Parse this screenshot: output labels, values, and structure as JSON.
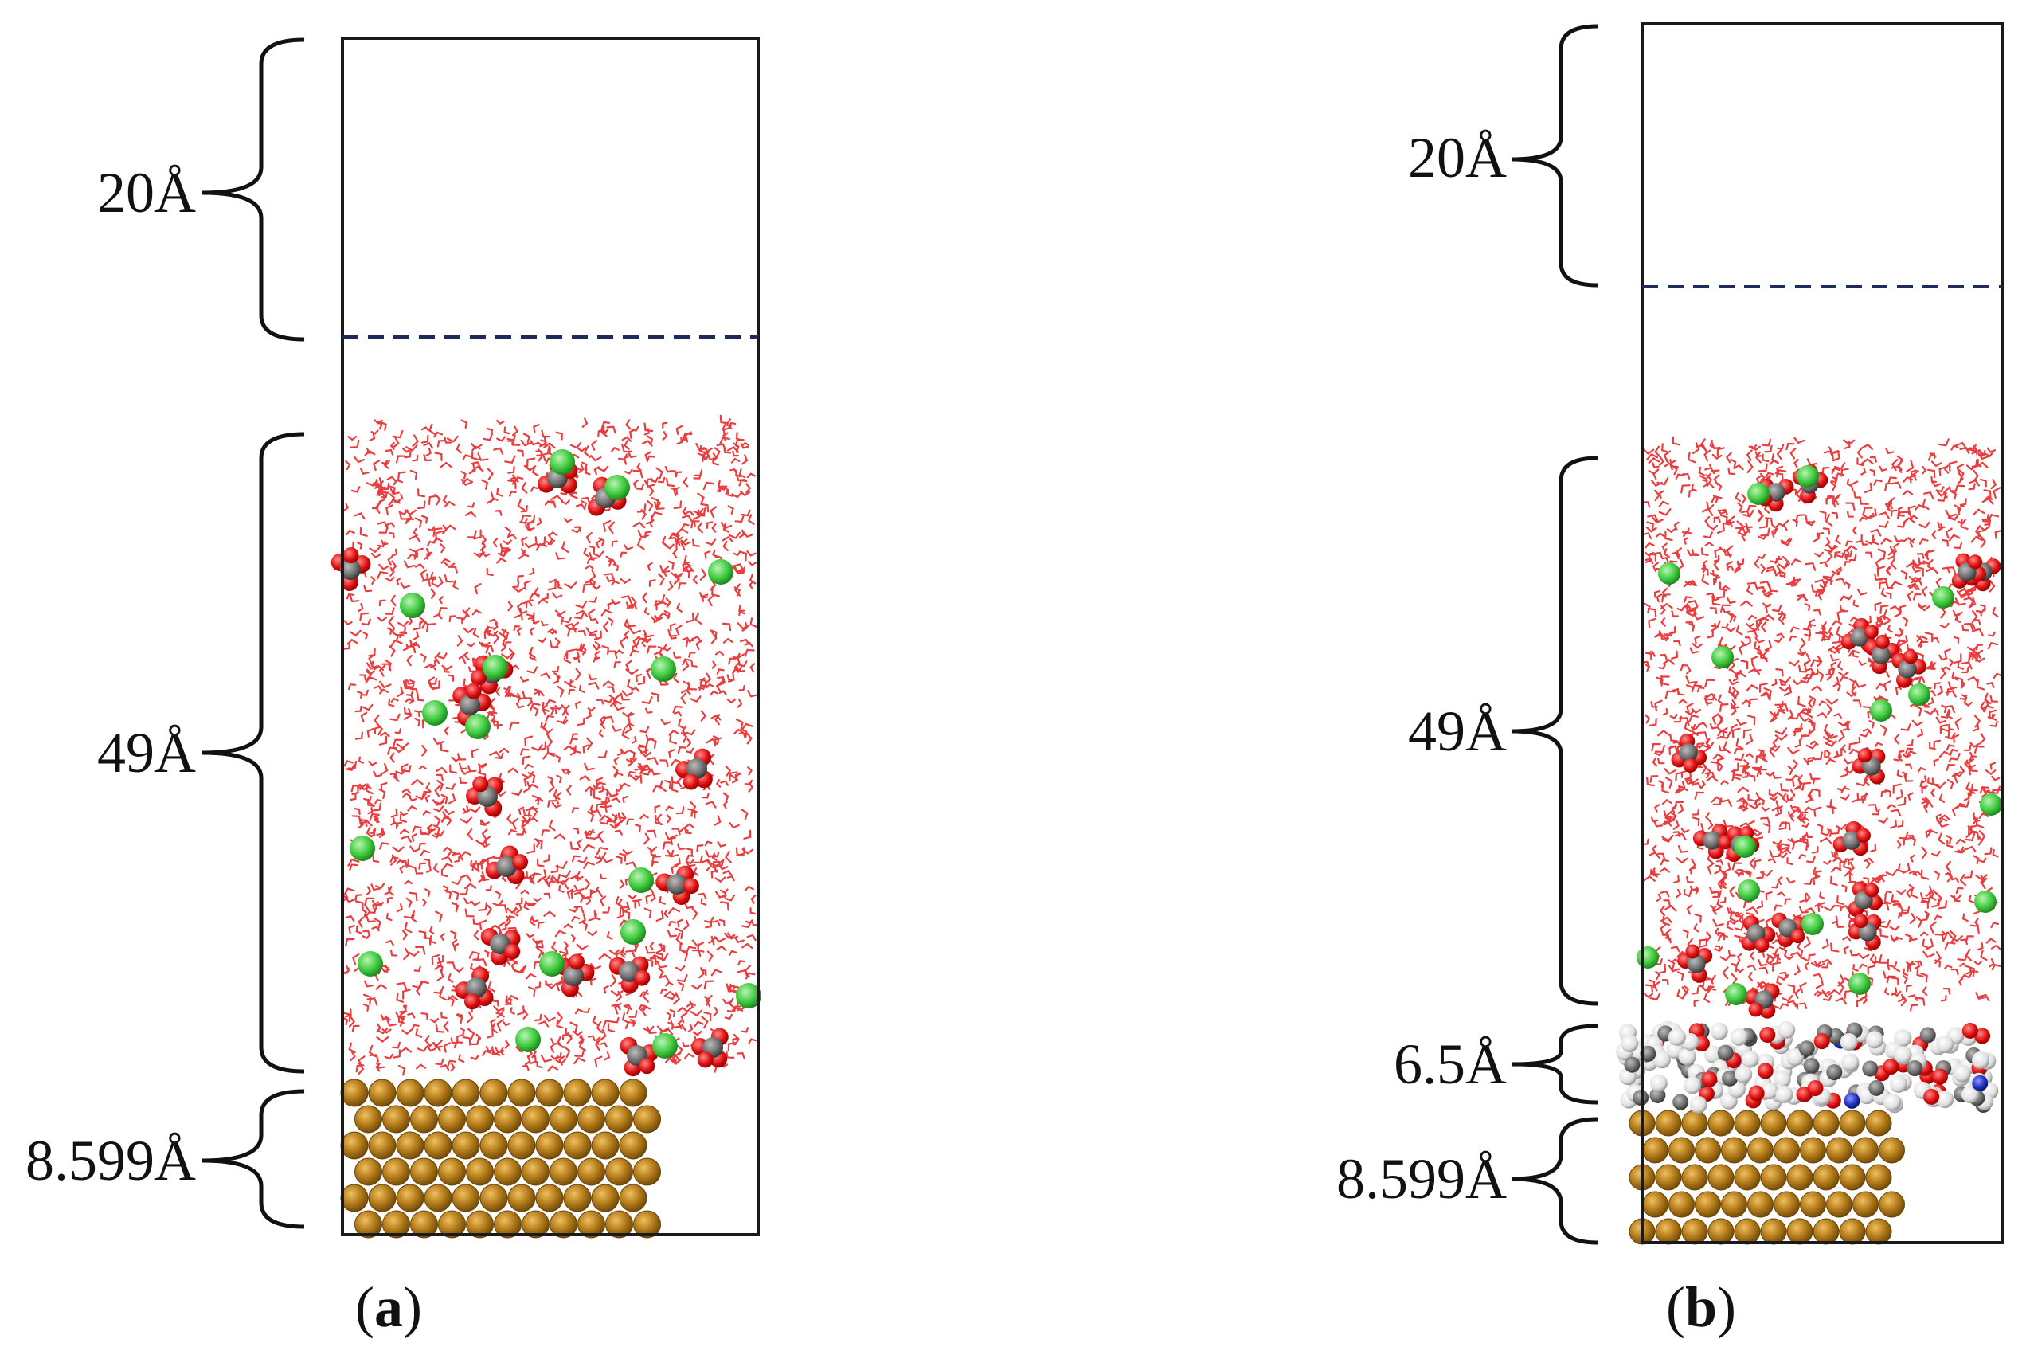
{
  "panel_a": {
    "caption_open": "(",
    "caption_letter": "a",
    "caption_close": ")",
    "labels": {
      "vacuum": "20Å",
      "solution": "49Å",
      "substrate": "8.599Å"
    },
    "layers": [
      "vacuum",
      "solution",
      "substrate"
    ]
  },
  "panel_b": {
    "caption_open": "(",
    "caption_letter": "b",
    "caption_close": ")",
    "labels": {
      "vacuum": "20Å",
      "solution": "49Å",
      "film": "6.5Å",
      "substrate": "8.599Å"
    },
    "layers": [
      "vacuum",
      "solution",
      "inhibitor film",
      "substrate"
    ]
  },
  "colors": {
    "box": "#1a1a1a",
    "dashed_line": "#1f2a5c",
    "water": "#e8282a",
    "oxygen": "#e01010",
    "carbon": "#6e6e6e",
    "chloride": "#3cc83c",
    "hydrogen": "#e6e6e6",
    "nitrogen": "#2030c0",
    "copper": "#b07818",
    "copper_edge": "#6a4508"
  }
}
